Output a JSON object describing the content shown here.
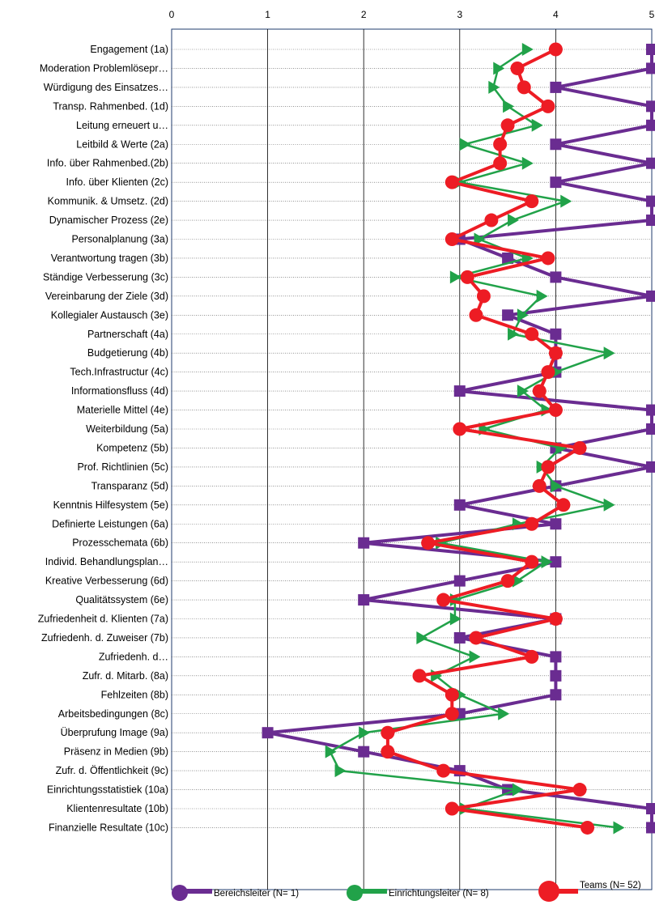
{
  "chart_data": {
    "type": "line",
    "orientation": "horizontal-values",
    "x_ticks": [
      0,
      1,
      2,
      3,
      4,
      5
    ],
    "xlim": [
      0,
      5
    ],
    "grid": "vertical lines at integer values, horizontal dotted leader lines per category",
    "categories": [
      "Engagement (1a)",
      "Moderation Problemlösepr…",
      "Würdigung des Einsatzes…",
      "Transp. Rahmenbed. (1d)",
      "Leitung erneuert u…",
      "Leitbild & Werte (2a)",
      "Info. über Rahmenbed.(2b)",
      "Info. über Klienten (2c)",
      "Kommunik. & Umsetz. (2d)",
      "Dynamischer Prozess (2e)",
      "Personalplanung (3a)",
      "Verantwortung tragen (3b)",
      "Ständige Verbesserung (3c)",
      "Vereinbarung der Ziele (3d)",
      "Kollegialer Austausch (3e)",
      "Partnerschaft (4a)",
      "Budgetierung (4b)",
      "Tech.Infrastructur (4c)",
      "Informationsfluss (4d)",
      "Materielle Mittel (4e)",
      "Weiterbildung (5a)",
      "Kompetenz (5b)",
      "Prof. Richtlinien (5c)",
      "Transparanz (5d)",
      "Kenntnis Hilfesystem (5e)",
      "Definierte Leistungen (6a)",
      "Prozesschemata (6b)",
      "Individ. Behandlungsplan…",
      "Kreative Verbesserung (6d)",
      "Qualitätssystem (6e)",
      "Zufriedenheit d. Klienten (7a)",
      "Zufriedenh. d. Zuweiser (7b)",
      "Zufriedenh. d…",
      "Zufr. d. Mitarb. (8a)",
      "Fehlzeiten (8b)",
      "Arbeitsbedingungen (8c)",
      "Überprufung Image (9a)",
      "Präsenz in Medien (9b)",
      "Zufr. d. Öffentlichkeit (9c)",
      "Einrichtungsstatistiek (10a)",
      "Klientenresultate (10b)",
      "Finanzielle Resultate (10c)"
    ],
    "series": [
      {
        "name": "Bereichsleiter (N= 1)",
        "color": "#6a2c91",
        "marker": "square",
        "values": [
          5,
          5,
          4,
          5,
          5,
          4,
          5,
          4,
          5,
          5,
          3,
          3.5,
          4,
          5,
          3.5,
          4,
          4,
          4,
          3,
          5,
          5,
          4,
          5,
          4,
          3,
          4,
          2,
          4,
          3,
          2,
          4,
          3,
          4,
          4,
          4,
          3,
          1,
          2,
          3,
          3.5,
          5,
          5
        ]
      },
      {
        "name": "Einrichtungsleiter (N= 8)",
        "color": "#21a249",
        "marker": "triangle",
        "values": [
          3.7,
          3.4,
          3.35,
          3.5,
          3.8,
          3.05,
          3.7,
          3,
          4.1,
          3.55,
          3.2,
          3.7,
          2.95,
          3.85,
          3.65,
          3.55,
          4.55,
          4,
          3.65,
          3.9,
          3.25,
          4.05,
          3.85,
          4,
          4.55,
          3.6,
          2.8,
          3.9,
          3.6,
          2.95,
          2.95,
          2.6,
          3.15,
          2.75,
          3,
          3.45,
          2,
          1.65,
          1.75,
          3.6,
          3.05,
          4.65
        ]
      },
      {
        "name": "Teams (N= 52)",
        "color": "#ed1c24",
        "marker": "circle",
        "values": [
          4,
          3.6,
          3.67,
          3.92,
          3.5,
          3.42,
          3.42,
          2.92,
          3.75,
          3.33,
          2.92,
          3.92,
          3.08,
          3.25,
          3.17,
          3.75,
          4,
          3.92,
          3.83,
          4,
          3,
          4.25,
          3.92,
          3.83,
          4.08,
          3.75,
          2.67,
          3.75,
          3.5,
          2.83,
          4,
          3.17,
          3.75,
          2.58,
          2.92,
          2.92,
          2.25,
          2.25,
          2.83,
          4.25,
          2.92,
          4.33
        ]
      }
    ]
  }
}
